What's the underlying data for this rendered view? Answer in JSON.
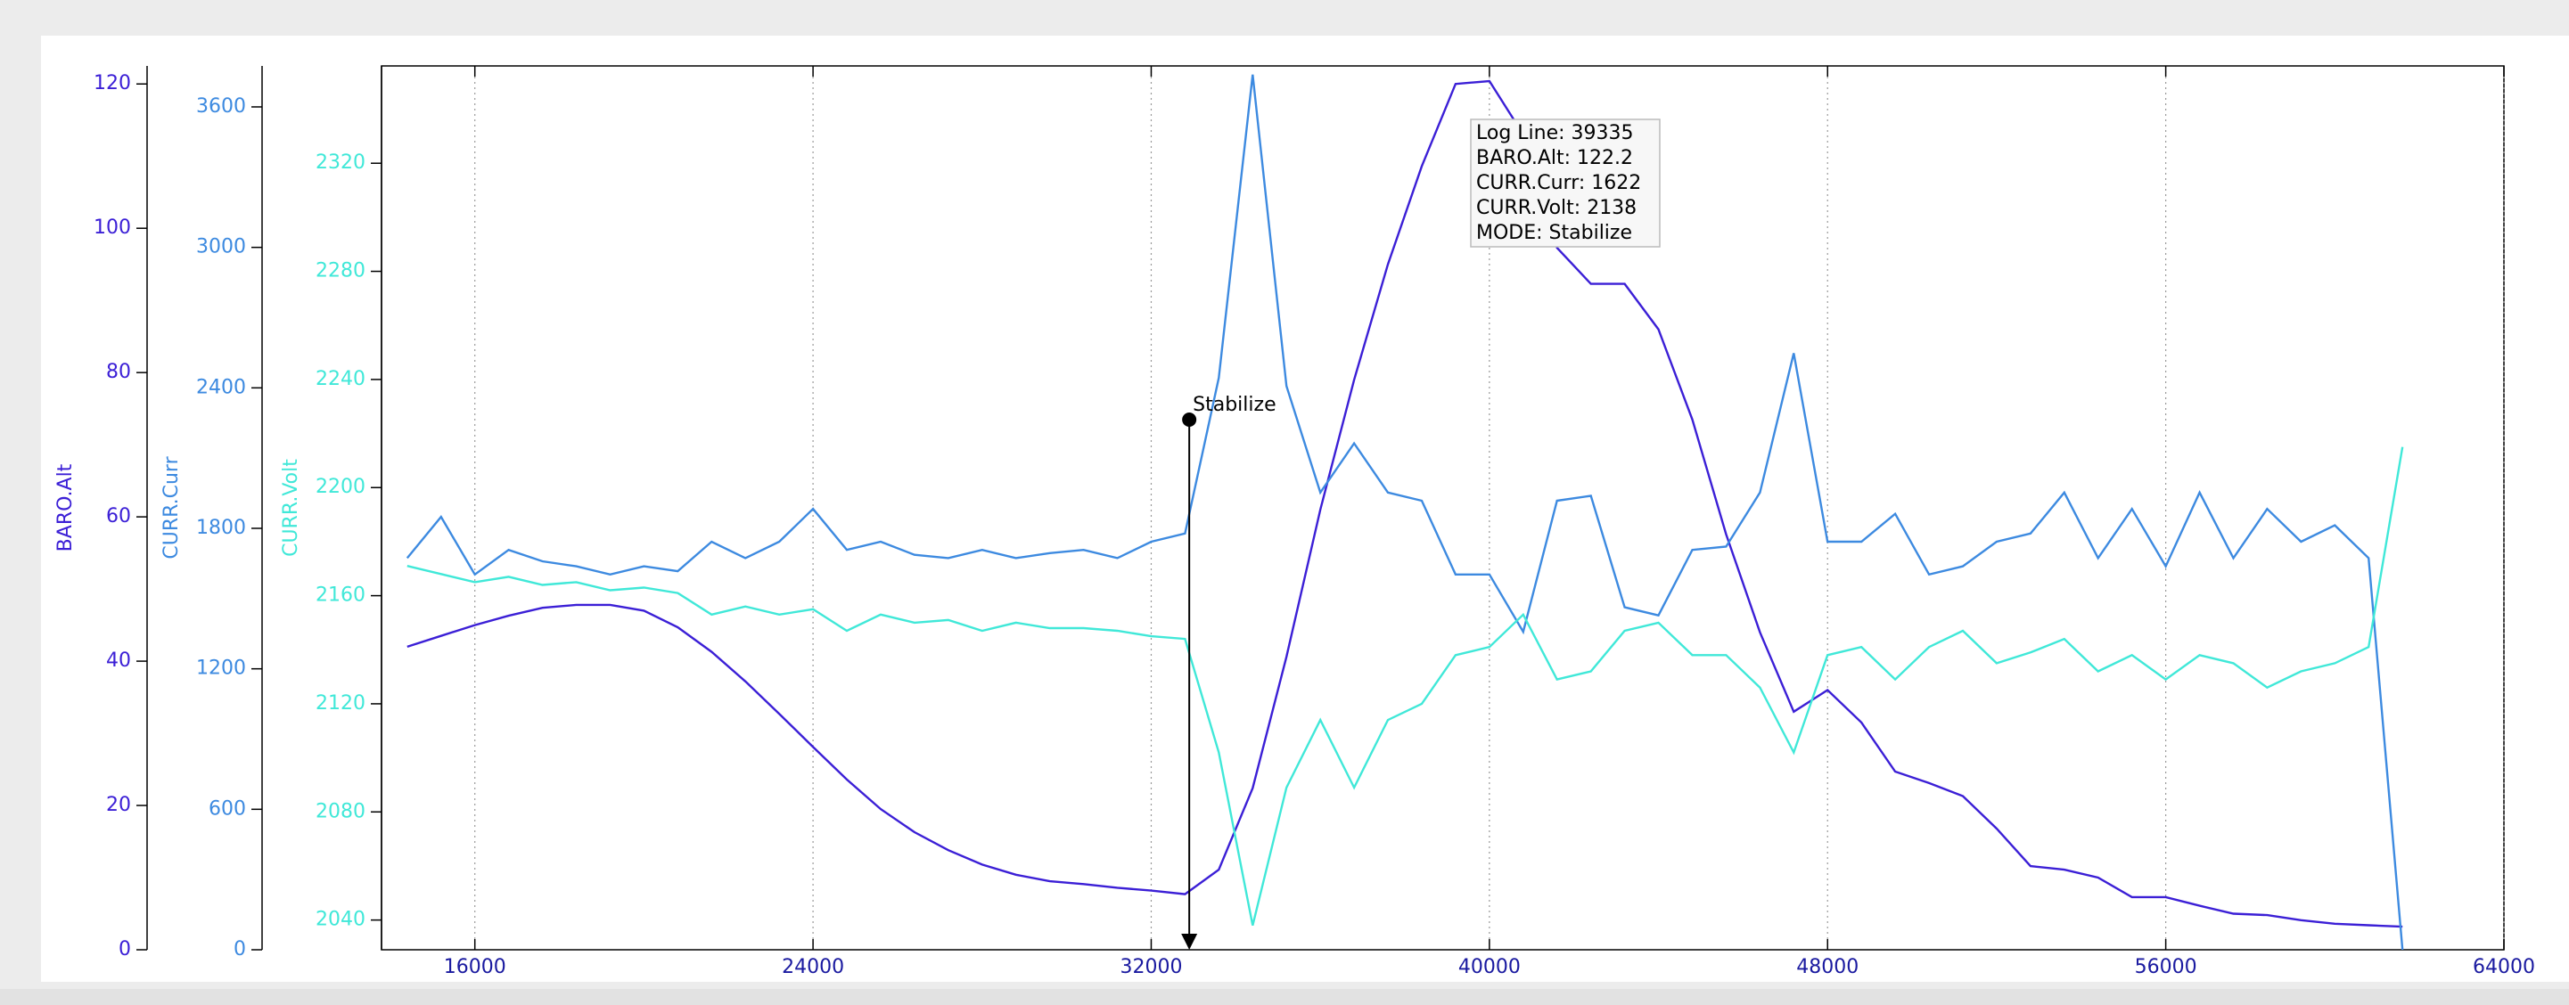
{
  "chart_data": {
    "type": "line",
    "x": [
      14400,
      15200,
      16000,
      16800,
      17600,
      18400,
      19200,
      20000,
      20800,
      21600,
      22400,
      23200,
      24000,
      24800,
      25600,
      26400,
      27200,
      28000,
      28800,
      29600,
      30400,
      31200,
      32000,
      32800,
      33600,
      34400,
      35200,
      36000,
      36800,
      37600,
      38400,
      39200,
      40000,
      40800,
      41600,
      42400,
      43200,
      44000,
      44800,
      45600,
      46400,
      47200,
      48000,
      48800,
      49600,
      50400,
      51200,
      52000,
      52800,
      53600,
      54400,
      55200,
      56000,
      56800,
      57600,
      58400,
      59200,
      60000,
      60800,
      61600
    ],
    "xlim": [
      13792,
      64000
    ],
    "xticks": [
      16000,
      24000,
      32000,
      40000,
      48000,
      56000,
      64000
    ],
    "ylim": [
      0,
      122.5
    ],
    "yticks": [
      0,
      20,
      40,
      60,
      80,
      100,
      120
    ],
    "y2lim": [
      0,
      3775
    ],
    "y2ticks": [
      0,
      600,
      1200,
      1800,
      2400,
      3000,
      3600
    ],
    "y3lim": [
      2029,
      2356
    ],
    "y3ticks": [
      2040,
      2080,
      2120,
      2160,
      2200,
      2240,
      2280,
      2320
    ],
    "grid": true,
    "series": [
      {
        "name": "BARO.Alt",
        "color": "#3b1fd6",
        "axis": "y",
        "values": [
          42,
          43.5,
          45,
          46.3,
          47.4,
          47.8,
          47.8,
          47,
          44.7,
          41.3,
          37.2,
          32.7,
          28.1,
          23.6,
          19.5,
          16.3,
          13.8,
          11.8,
          10.4,
          9.5,
          9.1,
          8.6,
          8.2,
          7.7,
          11.1,
          22.4,
          40.6,
          61,
          79,
          95,
          108.6,
          120,
          120.4,
          113,
          97.3,
          92.3,
          92.3,
          86,
          73.5,
          57.6,
          44,
          33,
          36,
          31.5,
          24.7,
          23.1,
          21.3,
          16.8,
          11.6,
          11.1,
          10,
          7.3,
          7.3,
          6.1,
          5,
          4.8,
          4.1,
          3.6,
          3.4,
          3.2
        ]
      },
      {
        "name": "CURR.Curr",
        "color": "#3d8ae0",
        "axis": "y2",
        "values": [
          1673,
          1849,
          1603,
          1708,
          1659,
          1638,
          1603,
          1638,
          1617,
          1743,
          1673,
          1743,
          1883,
          1708,
          1743,
          1687,
          1673,
          1708,
          1673,
          1694,
          1708,
          1673,
          1743,
          1778,
          2443,
          3738,
          2408,
          1953,
          2163,
          1953,
          1918,
          1603,
          1603,
          1358,
          1918,
          1939,
          1463,
          1428,
          1708,
          1722,
          1953,
          2548,
          1743,
          1743,
          1862,
          1603,
          1638,
          1743,
          1778,
          1953,
          1673,
          1883,
          1638,
          1953,
          1673,
          1883,
          1743,
          1813,
          1673,
          0
        ]
      },
      {
        "name": "CURR.Volt",
        "color": "#40e8d8",
        "axis": "y3",
        "values": [
          2171,
          2168,
          2165,
          2167,
          2164,
          2165,
          2162,
          2163,
          2161,
          2153,
          2156,
          2153,
          2155,
          2147,
          2153,
          2150,
          2151,
          2147,
          2150,
          2148,
          2148,
          2147,
          2145,
          2144,
          2102,
          2038,
          2089,
          2114,
          2089,
          2114,
          2120,
          2138,
          2141,
          2153,
          2129,
          2132,
          2147,
          2150,
          2138,
          2138,
          2126,
          2102,
          2138,
          2141,
          2129,
          2141,
          2147,
          2135,
          2139,
          2144,
          2132,
          2138,
          2129,
          2138,
          2135,
          2126,
          2132,
          2135,
          2141,
          2215
        ]
      }
    ],
    "annotations": [
      {
        "x": 32900,
        "label": "Stabilize"
      }
    ],
    "tooltip": [
      "Log Line: 39335",
      "BARO.Alt: 122.2",
      "CURR.Curr: 1622",
      "CURR.Volt: 2138",
      "MODE: Stabilize"
    ]
  }
}
